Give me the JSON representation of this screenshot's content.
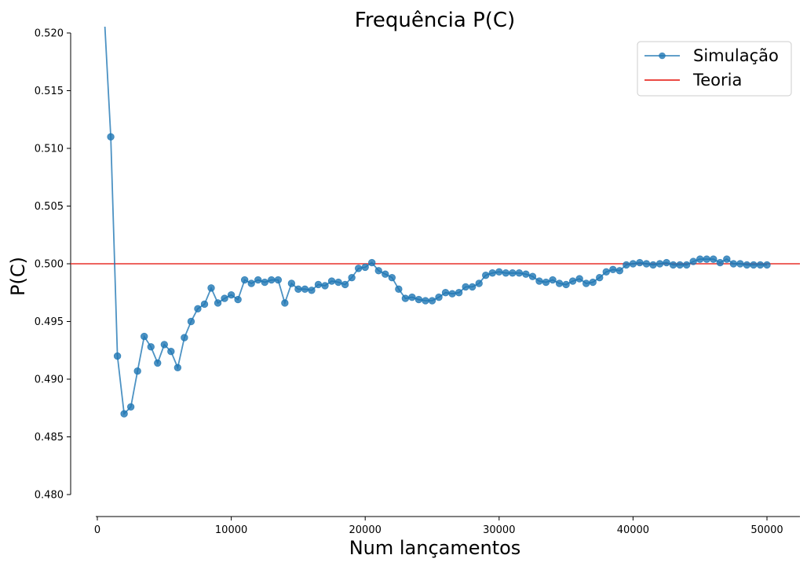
{
  "chart_data": {
    "type": "line",
    "title": "Frequência P(C)",
    "xlabel": "Num lançamentos",
    "ylabel": "P(C)",
    "xlim": [
      0,
      50000
    ],
    "ylim": [
      0.48,
      0.52
    ],
    "x_ticks": [
      0,
      10000,
      20000,
      30000,
      40000,
      50000
    ],
    "x_tick_labels": [
      "0",
      "10000",
      "20000",
      "30000",
      "40000",
      "50000"
    ],
    "y_ticks": [
      0.48,
      0.485,
      0.49,
      0.495,
      0.5,
      0.505,
      0.51,
      0.515,
      0.52
    ],
    "y_tick_labels": [
      "0.480",
      "0.485",
      "0.490",
      "0.495",
      "0.500",
      "0.505",
      "0.510",
      "0.515",
      "0.520"
    ],
    "grid": false,
    "legend_position": "top-right",
    "series": [
      {
        "name": "Simulação",
        "kind": "line-markers",
        "color": "#1f77b4",
        "x": [
          500,
          1000,
          1500,
          2000,
          2500,
          3000,
          3500,
          4000,
          4500,
          5000,
          5500,
          6000,
          6500,
          7000,
          7500,
          8000,
          8500,
          9000,
          9500,
          10000,
          10500,
          11000,
          11500,
          12000,
          12500,
          13000,
          13500,
          14000,
          14500,
          15000,
          15500,
          16000,
          16500,
          17000,
          17500,
          18000,
          18500,
          19000,
          19500,
          20000,
          20500,
          21000,
          21500,
          22000,
          22500,
          23000,
          23500,
          24000,
          24500,
          25000,
          25500,
          26000,
          26500,
          27000,
          27500,
          28000,
          28500,
          29000,
          29500,
          30000,
          30500,
          31000,
          31500,
          32000,
          32500,
          33000,
          33500,
          34000,
          34500,
          35000,
          35500,
          36000,
          36500,
          37000,
          37500,
          38000,
          38500,
          39000,
          39500,
          40000,
          40500,
          41000,
          41500,
          42000,
          42500,
          43000,
          43500,
          44000,
          44500,
          45000,
          45500,
          46000,
          46500,
          47000,
          47500,
          48000,
          48500,
          49000,
          49500,
          50000
        ],
        "y": [
          0.522,
          0.511,
          0.492,
          0.487,
          0.4876,
          0.4907,
          0.4937,
          0.4928,
          0.4914,
          0.493,
          0.4924,
          0.491,
          0.4936,
          0.495,
          0.4961,
          0.4965,
          0.4979,
          0.4966,
          0.497,
          0.4973,
          0.4969,
          0.4986,
          0.4983,
          0.4986,
          0.4984,
          0.4986,
          0.4986,
          0.4966,
          0.4983,
          0.4978,
          0.4978,
          0.4977,
          0.4982,
          0.4981,
          0.4985,
          0.4984,
          0.4982,
          0.4988,
          0.4996,
          0.4997,
          0.5001,
          0.4994,
          0.4991,
          0.4988,
          0.4978,
          0.497,
          0.4971,
          0.4969,
          0.4968,
          0.4968,
          0.4971,
          0.4975,
          0.4974,
          0.4975,
          0.498,
          0.498,
          0.4983,
          0.499,
          0.4992,
          0.4993,
          0.4992,
          0.4992,
          0.4992,
          0.4991,
          0.4989,
          0.4985,
          0.4984,
          0.4986,
          0.4983,
          0.4982,
          0.4985,
          0.4987,
          0.4983,
          0.4984,
          0.4988,
          0.4993,
          0.4995,
          0.4994,
          0.4999,
          0.5,
          0.5001,
          0.5,
          0.4999,
          0.5,
          0.5001,
          0.4999,
          0.4999,
          0.4999,
          0.5002,
          0.5004,
          0.5004,
          0.5004,
          0.5001,
          0.5004,
          0.5,
          0.5,
          0.4999,
          0.4999,
          0.4999,
          0.4999
        ]
      },
      {
        "name": "Teoria",
        "kind": "hline",
        "color": "#e8302a",
        "y": 0.5
      }
    ]
  }
}
